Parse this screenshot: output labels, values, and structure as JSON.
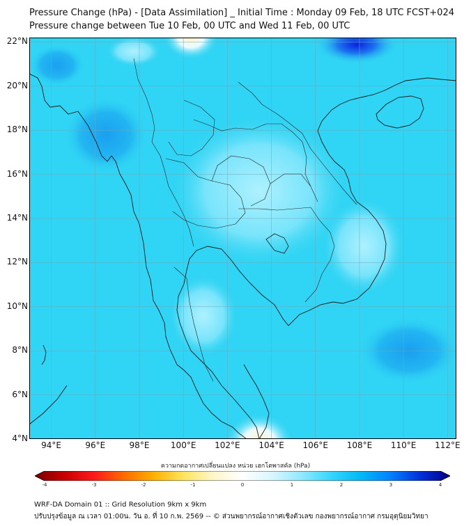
{
  "title_line1": "Pressure Change (hPa) - [Data Assimilation] _ Initial Time : Monday 09 Feb, 18 UTC FCST+024",
  "title_line2": "Pressure change between Tue 10 Feb, 00 UTC and Wed 11 Feb, 00 UTC",
  "lat_labels": [
    "22°N",
    "20°N",
    "18°N",
    "16°N",
    "14°N",
    "12°N",
    "10°N",
    "8°N",
    "6°N",
    "4°N"
  ],
  "lon_labels": [
    "94°E",
    "96°E",
    "98°E",
    "100°E",
    "102°E",
    "104°E",
    "106°E",
    "108°E",
    "110°E",
    "112°E"
  ],
  "map_extent": {
    "lon_min": 93,
    "lon_max": 112.4,
    "lat_min": 4,
    "lat_max": 22.2
  },
  "colorbar": {
    "title": "ความกดอากาศเปลี่ยนแปลง หน่วย เฮกโตพาสคัล (hPa)",
    "min": -4,
    "max": 4,
    "tick_labels": [
      "-4",
      "-3",
      "-2",
      "-1",
      "0",
      "1",
      "2",
      "3",
      "4"
    ],
    "colors": [
      "#7a0000",
      "#c80000",
      "#ff1a1a",
      "#ff6a00",
      "#ffb000",
      "#ffe45c",
      "#fff6c8",
      "#ffffff",
      "#d8f6ff",
      "#8fe9ff",
      "#35d6ff",
      "#00b8f5",
      "#0080ff",
      "#0030d8",
      "#000088"
    ]
  },
  "field_base_color": "#30d4f4",
  "footer_line1": "WRF-DA Domain 01 :: Grid Resolution 9km x 9km",
  "footer_line2": "ปรับปรุงข้อมูล ณ เวลา 01:00น. วัน อ. ที่ 10 ก.พ. 2569 -- © ส่วนพยากรณ์อากาศเชิงตัวเลข กองพยากรณ์อากาศ กรมอุตุนิยมวิทยา"
}
